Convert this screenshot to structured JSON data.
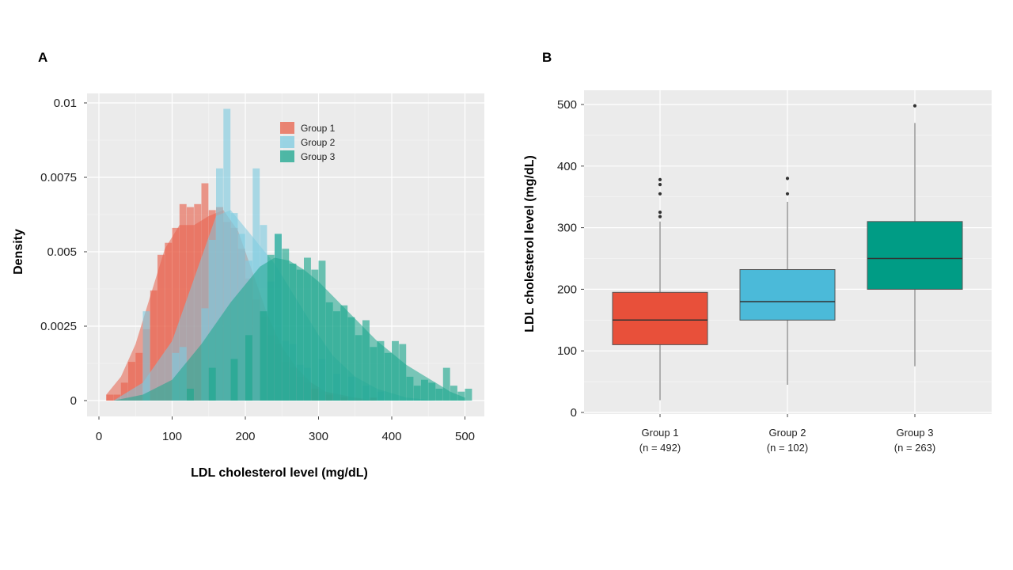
{
  "chart_data": [
    {
      "panel": "A",
      "type": "histogram",
      "ylabel": "Density",
      "xlabel": "LDL cholesterol level (mg/dL)",
      "xlim": [
        0,
        510
      ],
      "ylim": [
        0,
        0.01
      ],
      "x_ticks": [
        "0",
        "100",
        "200",
        "300",
        "400",
        "500"
      ],
      "y_ticks": [
        "0",
        "0.0025",
        "0.005",
        "0.0075",
        "0.01"
      ],
      "legend_position": "top-right",
      "grid": true,
      "bin_width": 10,
      "series": [
        {
          "name": "Group 1",
          "color": "#e8604a",
          "hist": [
            [
              10,
              0.0002
            ],
            [
              20,
              0.0002
            ],
            [
              30,
              0.0006
            ],
            [
              40,
              0.0013
            ],
            [
              50,
              0.0016
            ],
            [
              60,
              0.0024
            ],
            [
              70,
              0.0037
            ],
            [
              80,
              0.0049
            ],
            [
              90,
              0.0053
            ],
            [
              100,
              0.0058
            ],
            [
              110,
              0.0066
            ],
            [
              120,
              0.0065
            ],
            [
              130,
              0.0066
            ],
            [
              140,
              0.0073
            ],
            [
              150,
              0.0064
            ],
            [
              160,
              0.0065
            ],
            [
              170,
              0.006
            ],
            [
              180,
              0.0058
            ],
            [
              190,
              0.0051
            ],
            [
              200,
              0.0041
            ],
            [
              210,
              0.0034
            ],
            [
              220,
              0.0028
            ],
            [
              230,
              0.0022
            ],
            [
              240,
              0.0019
            ],
            [
              250,
              0.0013
            ],
            [
              260,
              0.0011
            ],
            [
              270,
              0.0008
            ],
            [
              280,
              0.0006
            ],
            [
              290,
              0.0004
            ],
            [
              300,
              0.0003
            ],
            [
              310,
              0.0002
            ],
            [
              320,
              0.0002
            ],
            [
              330,
              0.0001
            ],
            [
              340,
              0.0001
            ],
            [
              370,
              0.0001
            ]
          ],
          "density_x": [
            10,
            30,
            50,
            70,
            90,
            110,
            130,
            150,
            170,
            190,
            210,
            230,
            250,
            270,
            290,
            310,
            330,
            350,
            380
          ],
          "density_y": [
            0.0002,
            0.0008,
            0.0019,
            0.0035,
            0.0051,
            0.0059,
            0.0059,
            0.0062,
            0.0064,
            0.0057,
            0.0043,
            0.0029,
            0.0018,
            0.0011,
            0.0006,
            0.0003,
            0.0002,
            0.0001,
            0
          ]
        },
        {
          "name": "Group 2",
          "color": "#7ecbe0",
          "hist": [
            [
              60,
              0.003
            ],
            [
              100,
              0.0016
            ],
            [
              110,
              0.0018
            ],
            [
              140,
              0.0031
            ],
            [
              150,
              0.0054
            ],
            [
              160,
              0.0078
            ],
            [
              170,
              0.0098
            ],
            [
              180,
              0.0063
            ],
            [
              190,
              0.0056
            ],
            [
              200,
              0.0047
            ],
            [
              210,
              0.0078
            ],
            [
              220,
              0.0059
            ],
            [
              230,
              0.004
            ],
            [
              240,
              0.0056
            ],
            [
              250,
              0.002
            ],
            [
              260,
              0.0019
            ],
            [
              270,
              0.0012
            ],
            [
              280,
              0.0011
            ],
            [
              300,
              0.0014
            ],
            [
              320,
              0.0009
            ],
            [
              340,
              0.0008
            ],
            [
              360,
              0.0005
            ],
            [
              380,
              0.0003
            ]
          ],
          "density_x": [
            20,
            60,
            100,
            140,
            160,
            180,
            200,
            220,
            240,
            260,
            280,
            300,
            320,
            350,
            380,
            420,
            460
          ],
          "density_y": [
            0,
            0.0006,
            0.002,
            0.0048,
            0.0062,
            0.0064,
            0.0058,
            0.0052,
            0.0046,
            0.0038,
            0.003,
            0.0022,
            0.0015,
            0.0008,
            0.0004,
            0.0001,
            0
          ]
        },
        {
          "name": "Group 3",
          "color": "#1aa68d",
          "hist": [
            [
              120,
              0.0004
            ],
            [
              150,
              0.0011
            ],
            [
              180,
              0.0014
            ],
            [
              200,
              0.0022
            ],
            [
              220,
              0.003
            ],
            [
              230,
              0.0049
            ],
            [
              240,
              0.0056
            ],
            [
              250,
              0.0051
            ],
            [
              260,
              0.0046
            ],
            [
              270,
              0.0044
            ],
            [
              280,
              0.0048
            ],
            [
              290,
              0.0044
            ],
            [
              300,
              0.0047
            ],
            [
              310,
              0.0033
            ],
            [
              320,
              0.003
            ],
            [
              330,
              0.0032
            ],
            [
              340,
              0.0028
            ],
            [
              350,
              0.0022
            ],
            [
              360,
              0.0027
            ],
            [
              370,
              0.0018
            ],
            [
              380,
              0.002
            ],
            [
              390,
              0.0016
            ],
            [
              400,
              0.002
            ],
            [
              410,
              0.0019
            ],
            [
              420,
              0.0008
            ],
            [
              430,
              0.0005
            ],
            [
              440,
              0.0007
            ],
            [
              450,
              0.0006
            ],
            [
              460,
              0.0004
            ],
            [
              470,
              0.0011
            ],
            [
              480,
              0.0005
            ],
            [
              490,
              0.0003
            ],
            [
              500,
              0.0004
            ]
          ],
          "density_x": [
            20,
            60,
            100,
            140,
            180,
            220,
            240,
            260,
            280,
            300,
            320,
            340,
            360,
            380,
            400,
            420,
            440,
            460,
            480,
            500
          ],
          "density_y": [
            0,
            0.0002,
            0.0007,
            0.0019,
            0.0033,
            0.0045,
            0.0048,
            0.0047,
            0.0044,
            0.004,
            0.0035,
            0.003,
            0.0025,
            0.002,
            0.0016,
            0.0012,
            0.0009,
            0.0006,
            0.0003,
            0.0001
          ]
        }
      ]
    },
    {
      "panel": "B",
      "type": "box",
      "ylabel": "LDL cholesterol level (mg/dL)",
      "xlabel": "",
      "ylim": [
        0,
        510
      ],
      "y_ticks": [
        "0",
        "100",
        "200",
        "300",
        "400",
        "500"
      ],
      "grid": true,
      "categories": [
        "Group 1",
        "Group 2",
        "Group 3"
      ],
      "category_n": [
        "(n = 492)",
        "(n = 102)",
        "(n = 263)"
      ],
      "boxes": [
        {
          "color": "#e8503a",
          "min": 20,
          "q1": 110,
          "median": 150,
          "q3": 195,
          "max": 310,
          "outliers": [
            318,
            325,
            355,
            370,
            378
          ]
        },
        {
          "color": "#4bbad9",
          "min": 45,
          "q1": 150,
          "median": 180,
          "q3": 232,
          "max": 342,
          "outliers": [
            355,
            380
          ]
        },
        {
          "color": "#009c85",
          "min": 75,
          "q1": 200,
          "median": 250,
          "q3": 310,
          "max": 470,
          "outliers": [
            498
          ]
        }
      ]
    }
  ]
}
